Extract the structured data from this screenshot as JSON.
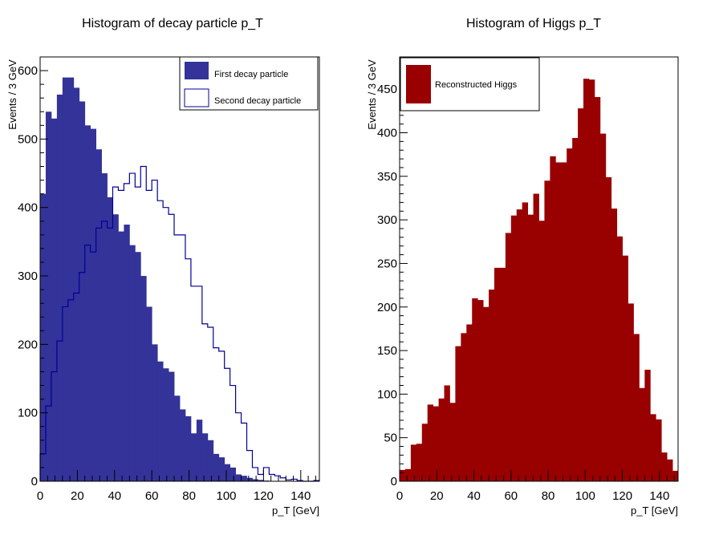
{
  "colors": {
    "background": "#ffffff",
    "first_fill": "#333399",
    "second_line": "#000099",
    "higgs_fill": "#990000",
    "axis": "#000000"
  },
  "chart_data": [
    {
      "type": "bar",
      "title": "Histogram of decay particle p_T",
      "xlabel": "p_T [GeV]",
      "ylabel": "Events / 3 GeV",
      "xlim": [
        0,
        150
      ],
      "ylim": [
        0,
        620
      ],
      "bin_width": 3,
      "xticks": [
        0,
        20,
        40,
        60,
        80,
        100,
        120,
        140
      ],
      "yticks": [
        0,
        100,
        200,
        300,
        400,
        500,
        600
      ],
      "legend_position": "top-right",
      "grid": false,
      "series": [
        {
          "name": "First decay particle",
          "style": "filled",
          "values": [
            420,
            540,
            530,
            565,
            590,
            590,
            575,
            555,
            520,
            515,
            485,
            450,
            415,
            390,
            365,
            375,
            345,
            335,
            300,
            255,
            200,
            175,
            165,
            160,
            125,
            105,
            95,
            70,
            90,
            70,
            60,
            40,
            35,
            25,
            20,
            10,
            8,
            5,
            3,
            2,
            1,
            0,
            0,
            0,
            0,
            0,
            0,
            0,
            0,
            0
          ]
        },
        {
          "name": "Second decay particle",
          "style": "outline",
          "values": [
            40,
            110,
            160,
            205,
            255,
            265,
            275,
            305,
            345,
            335,
            370,
            380,
            370,
            430,
            425,
            435,
            450,
            430,
            460,
            425,
            440,
            410,
            400,
            390,
            360,
            360,
            325,
            285,
            285,
            230,
            225,
            195,
            190,
            165,
            140,
            100,
            85,
            45,
            20,
            10,
            20,
            10,
            8,
            5,
            2,
            3,
            1,
            0,
            0,
            1
          ]
        }
      ]
    },
    {
      "type": "bar",
      "title": "Histogram of Higgs p_T",
      "xlabel": "p_T [GeV]",
      "ylabel": "Events / 3 GeV",
      "xlim": [
        0,
        150
      ],
      "ylim": [
        0,
        487
      ],
      "bin_width": 3,
      "xticks": [
        0,
        20,
        40,
        60,
        80,
        100,
        120,
        140
      ],
      "yticks": [
        0,
        50,
        100,
        150,
        200,
        250,
        300,
        350,
        400,
        450
      ],
      "legend_position": "top-left",
      "grid": false,
      "series": [
        {
          "name": "Reconstructed Higgs",
          "style": "filled",
          "values": [
            13,
            14,
            42,
            43,
            66,
            88,
            86,
            95,
            110,
            90,
            155,
            170,
            180,
            210,
            208,
            200,
            220,
            245,
            245,
            285,
            305,
            312,
            320,
            306,
            330,
            299,
            345,
            373,
            366,
            366,
            382,
            394,
            428,
            462,
            461,
            441,
            399,
            349,
            313,
            281,
            259,
            204,
            169,
            107,
            128,
            77,
            71,
            33,
            25,
            12
          ]
        }
      ]
    }
  ]
}
